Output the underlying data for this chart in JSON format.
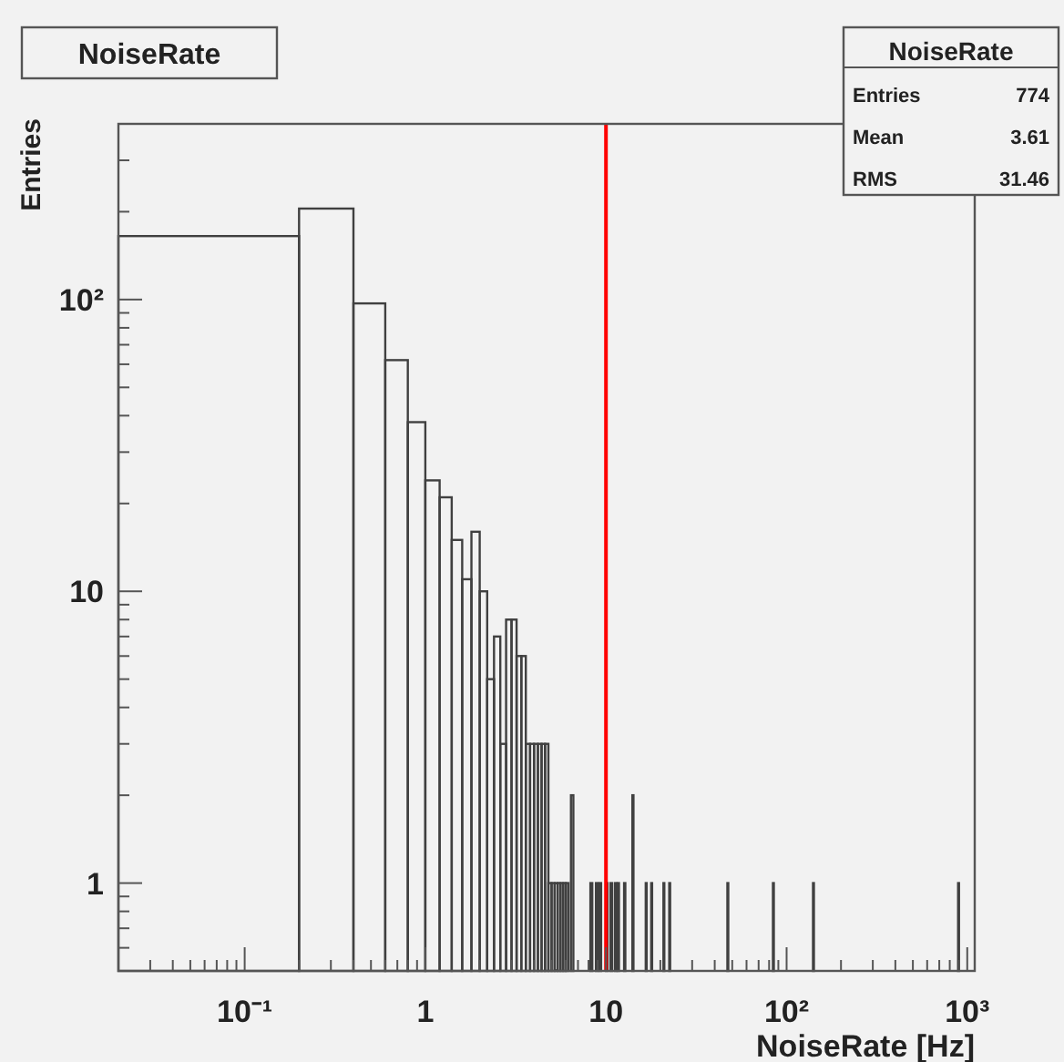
{
  "chart_data": {
    "type": "histogram",
    "title": "NoiseRate",
    "xlabel": "NoiseRate [Hz]",
    "ylabel": "Entries",
    "annotations": [
      "NoiseRate",
      "Entries 774",
      "Mean 3.61",
      "RMS 31.46"
    ],
    "log": "xy",
    "grid": false,
    "color": "#404040",
    "xlim": [
      0.02,
      1100
    ],
    "ylim": [
      0.5,
      400
    ],
    "xticks": [
      {
        "value": 0.03,
        "label": null
      },
      {
        "value": 0.04,
        "label": null
      },
      {
        "value": 0.05,
        "label": null
      },
      {
        "value": 0.06,
        "label": null
      },
      {
        "value": 0.07,
        "label": null
      },
      {
        "value": 0.08,
        "label": null
      },
      {
        "value": 0.09,
        "label": null
      },
      {
        "value": 0.1,
        "label": "10⁻¹"
      },
      {
        "value": 0.2,
        "label": null
      },
      {
        "value": 0.3,
        "label": null
      },
      {
        "value": 0.4,
        "label": null
      },
      {
        "value": 0.5,
        "label": null
      },
      {
        "value": 0.6,
        "label": null
      },
      {
        "value": 0.7,
        "label": null
      },
      {
        "value": 0.8,
        "label": null
      },
      {
        "value": 0.9,
        "label": null
      },
      1,
      {
        "value": 2,
        "label": null
      },
      {
        "value": 3,
        "label": null
      },
      {
        "value": 4,
        "label": null
      },
      {
        "value": 5,
        "label": null
      },
      {
        "value": 6,
        "label": null
      },
      {
        "value": 7,
        "label": null
      },
      {
        "value": 8,
        "label": null
      },
      {
        "value": 9,
        "label": null
      },
      10,
      {
        "value": 20,
        "label": null
      },
      {
        "value": 30,
        "label": null
      },
      {
        "value": 40,
        "label": null
      },
      {
        "value": 50,
        "label": null
      },
      {
        "value": 60,
        "label": null
      },
      {
        "value": 70,
        "label": null
      },
      {
        "value": 80,
        "label": null
      },
      {
        "value": 90,
        "label": null
      },
      {
        "value": 100,
        "label": "10²"
      },
      {
        "value": 200,
        "label": null
      },
      {
        "value": 300,
        "label": null
      },
      {
        "value": 400,
        "label": null
      },
      {
        "value": 500,
        "label": null
      },
      {
        "value": 600,
        "label": null
      },
      {
        "value": 700,
        "label": null
      },
      {
        "value": 800,
        "label": null
      },
      {
        "value": 900,
        "label": null
      },
      {
        "value": 1000,
        "label": "10³"
      }
    ],
    "yticks": [
      {
        "value": 0.6,
        "label": null
      },
      {
        "value": 0.7,
        "label": null
      },
      {
        "value": 0.8,
        "label": null
      },
      {
        "value": 0.9,
        "label": null
      },
      1,
      {
        "value": 2,
        "label": null
      },
      {
        "value": 3,
        "label": null
      },
      {
        "value": 4,
        "label": null
      },
      {
        "value": 5,
        "label": null
      },
      {
        "value": 6,
        "label": null
      },
      {
        "value": 7,
        "label": null
      },
      {
        "value": 8,
        "label": null
      },
      {
        "value": 9,
        "label": null
      },
      10,
      {
        "value": 20,
        "label": null
      },
      {
        "value": 30,
        "label": null
      },
      {
        "value": 40,
        "label": null
      },
      {
        "value": 50,
        "label": null
      },
      {
        "value": 60,
        "label": null
      },
      {
        "value": 70,
        "label": null
      },
      {
        "value": 80,
        "label": null
      },
      {
        "value": 90,
        "label": null
      },
      {
        "value": 100,
        "label": "10²"
      },
      {
        "value": 200,
        "label": null
      },
      {
        "value": 300,
        "label": null
      }
    ],
    "ref_lines": [
      {
        "axis": "x",
        "value": 10,
        "label": null,
        "color": "#ff0000"
      }
    ],
    "bins": [
      0.02,
      0.2,
      0.4,
      0.6,
      0.8,
      1.0,
      1.2,
      1.4,
      1.6,
      1.8,
      2.0,
      2.2,
      2.4,
      2.6,
      2.8,
      3.0,
      3.2,
      3.4,
      3.6,
      3.8,
      4.0,
      4.2,
      4.4,
      4.6,
      4.8,
      5.0,
      5.2,
      5.4,
      5.6,
      5.8,
      6.0,
      6.2,
      6.4,
      6.6,
      8.2,
      8.4,
      8.8,
      9.0,
      9.2,
      9.4,
      10.0,
      10.2,
      10.6,
      10.8,
      11.2,
      11.4,
      11.6,
      11.8,
      12.6,
      12.8,
      14.0,
      14.2,
      16.6,
      16.8,
      17.8,
      18.0,
      20.8,
      21.0,
      22.4,
      22.6,
      47.0,
      47.2,
      84.0,
      84.2,
      140.0,
      140.2,
      890.0,
      890.2
    ],
    "values": [
      165,
      205,
      97,
      62,
      38,
      24,
      21,
      15,
      11,
      16,
      10,
      5,
      7,
      3,
      8,
      8,
      6,
      6,
      3,
      3,
      3,
      3,
      3,
      3,
      1,
      1,
      1,
      1,
      1,
      1,
      1,
      null,
      2,
      null,
      1,
      null,
      1,
      null,
      1,
      null,
      1,
      null,
      1,
      null,
      1,
      null,
      1,
      null,
      1,
      null,
      2,
      null,
      1,
      null,
      1,
      null,
      1,
      null,
      1,
      null,
      1,
      null,
      1,
      null,
      1,
      null,
      1
    ]
  }
}
